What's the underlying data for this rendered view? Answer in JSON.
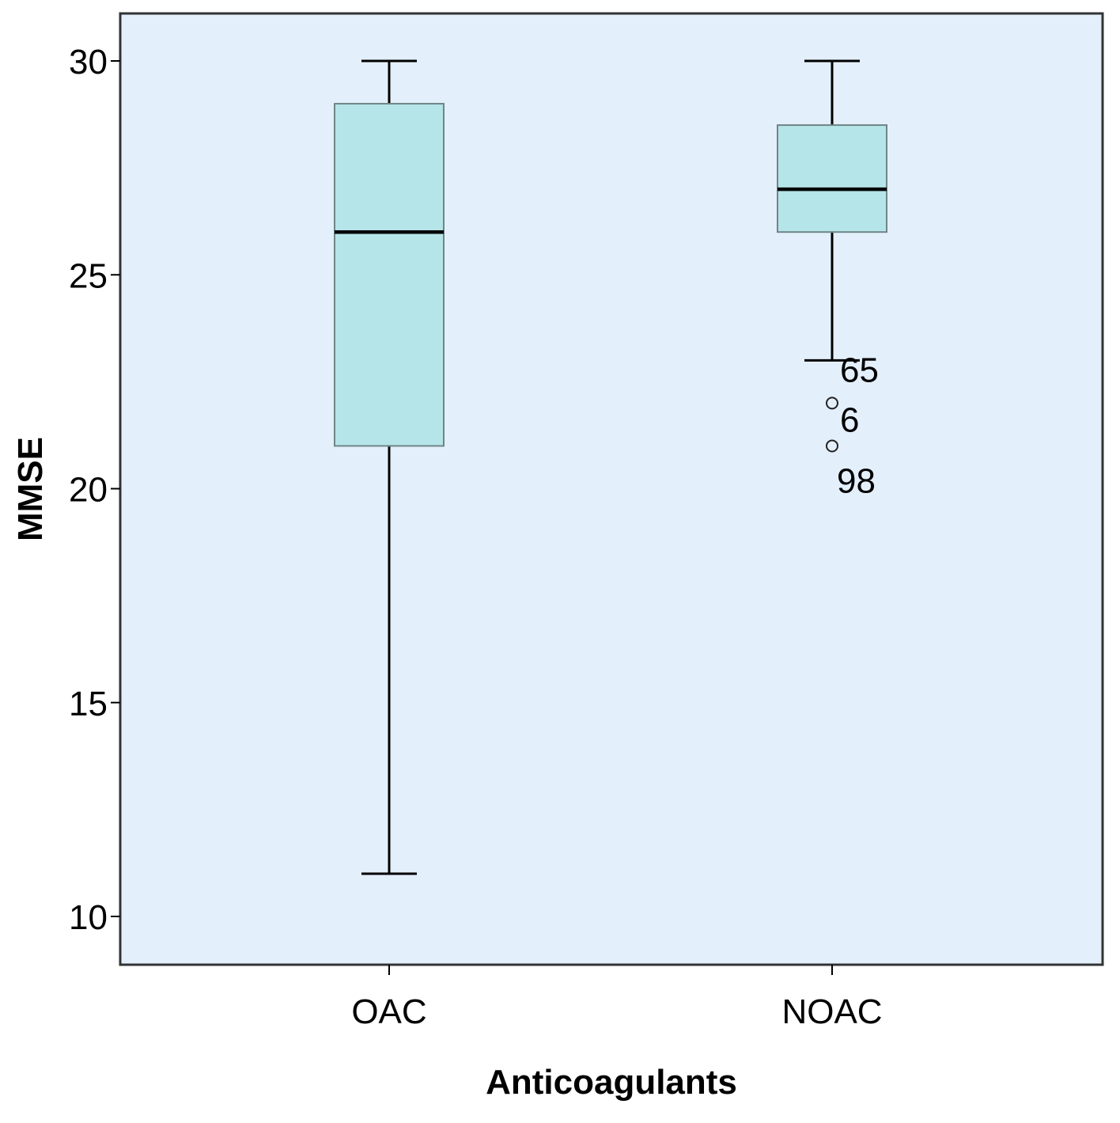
{
  "chart_data": {
    "type": "boxplot",
    "title": "",
    "xlabel": "Anticoagulants",
    "ylabel": "MMSE",
    "ylim": [
      8.9,
      31.1
    ],
    "yticks": [
      10,
      15,
      20,
      25,
      30
    ],
    "categories": [
      "OAC",
      "NOAC"
    ],
    "boxes": [
      {
        "category": "OAC",
        "whisker_low": 11,
        "q1": 21,
        "median": 26,
        "q3": 29,
        "whisker_high": 30,
        "outliers": []
      },
      {
        "category": "NOAC",
        "whisker_low": 23,
        "q1": 26,
        "median": 27,
        "q3": 28.5,
        "whisker_high": 30,
        "outliers": [
          {
            "value": 22,
            "label": "6"
          },
          {
            "value": 21,
            "label": "98"
          }
        ],
        "whisker_label": "65"
      }
    ],
    "grid": false,
    "colors": {
      "plot_background": "#e4effc",
      "box_fill": "#b5e5e8",
      "box_stroke": "#6f8587",
      "line": "#000000"
    }
  }
}
